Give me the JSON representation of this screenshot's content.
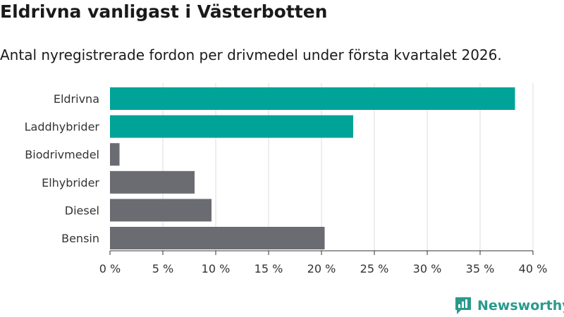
{
  "header": {
    "title": "Eldrivna vanligast i Västerbotten",
    "subtitle": "Antal nyregistrerade fordon per drivmedel under första kvartalet 2026."
  },
  "brand": {
    "name": "Newsworthy",
    "color": "#2a9a8c"
  },
  "colors": {
    "highlight": "#00a398",
    "default": "#6b6b72",
    "grid": "#dddddd",
    "axis": "#333333"
  },
  "chart_data": {
    "type": "bar",
    "orientation": "horizontal",
    "categories": [
      "Eldrivna",
      "Laddhybrider",
      "Biodrivmedel",
      "Elhybrider",
      "Diesel",
      "Bensin"
    ],
    "values": [
      38.3,
      23.0,
      0.9,
      8.0,
      9.6,
      20.3
    ],
    "highlighted": [
      true,
      true,
      false,
      false,
      false,
      false
    ],
    "xlim": [
      0,
      40
    ],
    "xticks": [
      0,
      5,
      10,
      15,
      20,
      25,
      30,
      35,
      40
    ],
    "tick_labels": [
      "0 %",
      "5 %",
      "10 %",
      "15 %",
      "20 %",
      "25 %",
      "30 %",
      "35 %",
      "40 %"
    ],
    "grid": true
  }
}
